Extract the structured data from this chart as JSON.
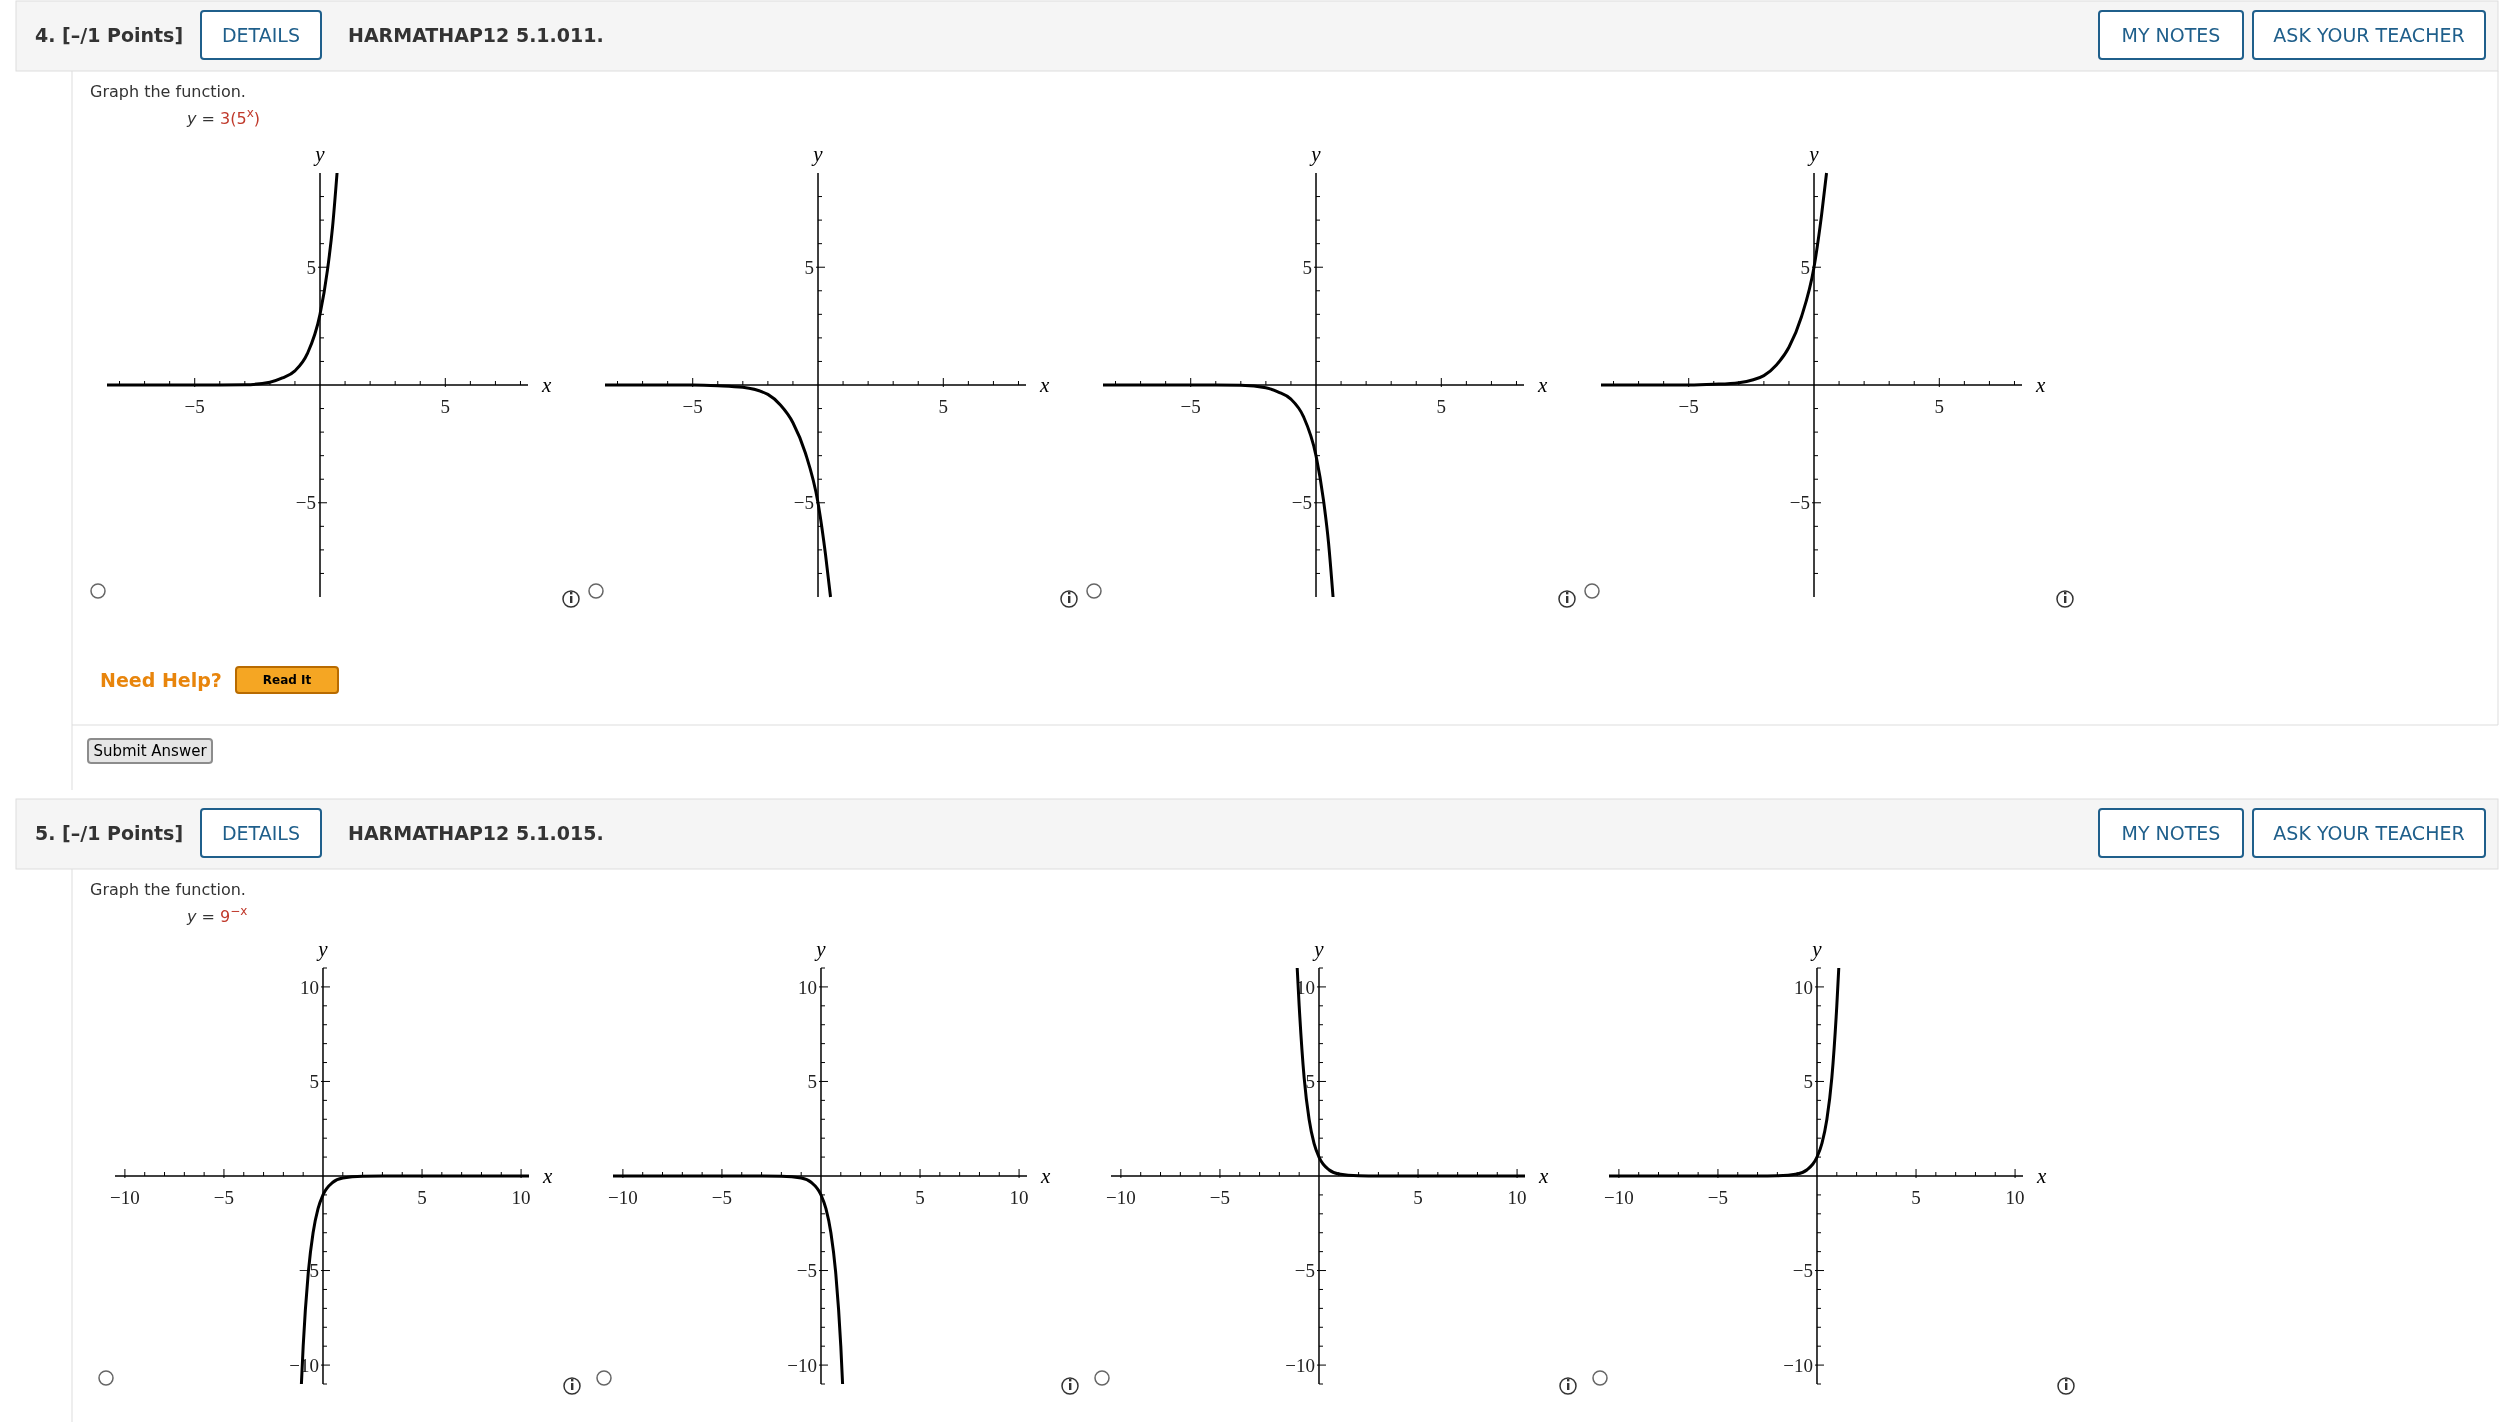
{
  "chart_data": [
    {
      "type": "other",
      "annotations": [
        "4. [–/1 Points]",
        "DETAILS",
        "HARMATHAP12 5.1.011.",
        "MY NOTES",
        "ASK YOUR TEACHER",
        "Graph the function.",
        "y = ",
        "3(5$^{x}$)",
        "Need Help?",
        "Read It",
        "Submit Answer"
      ]
    },
    {
      "type": "line",
      "xlabel": "x",
      "ylabel": "y",
      "xlim": [
        -8.5,
        8.3
      ],
      "ylim": [
        -9,
        9
      ],
      "xticks": [
        {
          "value": -8,
          "label": null
        },
        {
          "value": -7,
          "label": null
        },
        {
          "value": -6,
          "label": null
        },
        {
          "value": -5,
          "label": "−5"
        },
        {
          "value": -4,
          "label": null
        },
        {
          "value": -3,
          "label": null
        },
        {
          "value": -2,
          "label": null
        },
        {
          "value": -1,
          "label": null
        },
        {
          "value": 1,
          "label": null
        },
        {
          "value": 2,
          "label": null
        },
        {
          "value": 3,
          "label": null
        },
        {
          "value": 4,
          "label": null
        },
        {
          "value": 5,
          "label": "5"
        },
        {
          "value": 6,
          "label": null
        },
        {
          "value": 7,
          "label": null
        },
        {
          "value": 8,
          "label": null
        }
      ],
      "yticks": [
        {
          "value": -8,
          "label": null
        },
        {
          "value": -7,
          "label": null
        },
        {
          "value": -6,
          "label": null
        },
        {
          "value": -5,
          "label": "−5"
        },
        {
          "value": -4,
          "label": null
        },
        {
          "value": -3,
          "label": null
        },
        {
          "value": -2,
          "label": null
        },
        {
          "value": -1,
          "label": null
        },
        {
          "value": 1,
          "label": null
        },
        {
          "value": 2,
          "label": null
        },
        {
          "value": 3,
          "label": null
        },
        {
          "value": 4,
          "label": null
        },
        {
          "value": 5,
          "label": "5"
        },
        {
          "value": 6,
          "label": null
        },
        {
          "value": 7,
          "label": null
        },
        {
          "value": 8,
          "label": null
        }
      ],
      "color": "#000000",
      "x": [
        -8.5,
        -4,
        -3,
        -2,
        -1.5,
        -1,
        -0.5,
        0,
        0.3,
        0.5,
        0.68
      ],
      "values": [
        0,
        0,
        0.01,
        0.12,
        0.3,
        0.6,
        1.34,
        3,
        4.9,
        6.7,
        9
      ]
    },
    {
      "type": "line",
      "xlabel": "x",
      "ylabel": "y",
      "xlim": [
        -8.5,
        8.3
      ],
      "ylim": [
        -9,
        9
      ],
      "xticks": [
        {
          "value": -8,
          "label": null
        },
        {
          "value": -7,
          "label": null
        },
        {
          "value": -6,
          "label": null
        },
        {
          "value": -5,
          "label": "−5"
        },
        {
          "value": -4,
          "label": null
        },
        {
          "value": -3,
          "label": null
        },
        {
          "value": -2,
          "label": null
        },
        {
          "value": -1,
          "label": null
        },
        {
          "value": 1,
          "label": null
        },
        {
          "value": 2,
          "label": null
        },
        {
          "value": 3,
          "label": null
        },
        {
          "value": 4,
          "label": null
        },
        {
          "value": 5,
          "label": "5"
        },
        {
          "value": 6,
          "label": null
        },
        {
          "value": 7,
          "label": null
        },
        {
          "value": 8,
          "label": null
        }
      ],
      "yticks": [
        {
          "value": -8,
          "label": null
        },
        {
          "value": -7,
          "label": null
        },
        {
          "value": -6,
          "label": null
        },
        {
          "value": -5,
          "label": "−5"
        },
        {
          "value": -4,
          "label": null
        },
        {
          "value": -3,
          "label": null
        },
        {
          "value": -2,
          "label": null
        },
        {
          "value": -1,
          "label": null
        },
        {
          "value": 1,
          "label": null
        },
        {
          "value": 2,
          "label": null
        },
        {
          "value": 3,
          "label": null
        },
        {
          "value": 4,
          "label": null
        },
        {
          "value": 5,
          "label": "5"
        },
        {
          "value": 6,
          "label": null
        },
        {
          "value": 7,
          "label": null
        },
        {
          "value": 8,
          "label": null
        }
      ],
      "color": "#000000",
      "x": [
        -8.5,
        -5,
        -4,
        -3,
        -2,
        -1.5,
        -1,
        -0.5,
        0,
        0.3,
        0.5
      ],
      "values": [
        0,
        0,
        -0.03,
        -0.1,
        -0.4,
        -0.85,
        -1.6,
        -2.9,
        -5,
        -7.2,
        -9
      ]
    },
    {
      "type": "line",
      "xlabel": "x",
      "ylabel": "y",
      "xlim": [
        -8.5,
        8.3
      ],
      "ylim": [
        -9,
        9
      ],
      "xticks": [
        {
          "value": -8,
          "label": null
        },
        {
          "value": -7,
          "label": null
        },
        {
          "value": -6,
          "label": null
        },
        {
          "value": -5,
          "label": "−5"
        },
        {
          "value": -4,
          "label": null
        },
        {
          "value": -3,
          "label": null
        },
        {
          "value": -2,
          "label": null
        },
        {
          "value": -1,
          "label": null
        },
        {
          "value": 1,
          "label": null
        },
        {
          "value": 2,
          "label": null
        },
        {
          "value": 3,
          "label": null
        },
        {
          "value": 4,
          "label": null
        },
        {
          "value": 5,
          "label": "5"
        },
        {
          "value": 6,
          "label": null
        },
        {
          "value": 7,
          "label": null
        },
        {
          "value": 8,
          "label": null
        }
      ],
      "yticks": [
        {
          "value": -8,
          "label": null
        },
        {
          "value": -7,
          "label": null
        },
        {
          "value": -6,
          "label": null
        },
        {
          "value": -5,
          "label": "−5"
        },
        {
          "value": -4,
          "label": null
        },
        {
          "value": -3,
          "label": null
        },
        {
          "value": -2,
          "label": null
        },
        {
          "value": -1,
          "label": null
        },
        {
          "value": 1,
          "label": null
        },
        {
          "value": 2,
          "label": null
        },
        {
          "value": 3,
          "label": null
        },
        {
          "value": 4,
          "label": null
        },
        {
          "value": 5,
          "label": "5"
        },
        {
          "value": 6,
          "label": null
        },
        {
          "value": 7,
          "label": null
        },
        {
          "value": 8,
          "label": null
        }
      ],
      "color": "#000000",
      "x": [
        -8.5,
        -4,
        -3,
        -2,
        -1.5,
        -1,
        -0.5,
        0,
        0.3,
        0.5,
        0.68
      ],
      "values": [
        0,
        0,
        -0.01,
        -0.12,
        -0.3,
        -0.6,
        -1.34,
        -3,
        -4.9,
        -6.7,
        -9
      ]
    },
    {
      "type": "line",
      "xlabel": "x",
      "ylabel": "y",
      "xlim": [
        -8.5,
        8.3
      ],
      "ylim": [
        -9,
        9
      ],
      "xticks": [
        {
          "value": -8,
          "label": null
        },
        {
          "value": -7,
          "label": null
        },
        {
          "value": -6,
          "label": null
        },
        {
          "value": -5,
          "label": "−5"
        },
        {
          "value": -4,
          "label": null
        },
        {
          "value": -3,
          "label": null
        },
        {
          "value": -2,
          "label": null
        },
        {
          "value": -1,
          "label": null
        },
        {
          "value": 1,
          "label": null
        },
        {
          "value": 2,
          "label": null
        },
        {
          "value": 3,
          "label": null
        },
        {
          "value": 4,
          "label": null
        },
        {
          "value": 5,
          "label": "5"
        },
        {
          "value": 6,
          "label": null
        },
        {
          "value": 7,
          "label": null
        },
        {
          "value": 8,
          "label": null
        }
      ],
      "yticks": [
        {
          "value": -8,
          "label": null
        },
        {
          "value": -7,
          "label": null
        },
        {
          "value": -6,
          "label": null
        },
        {
          "value": -5,
          "label": "−5"
        },
        {
          "value": -4,
          "label": null
        },
        {
          "value": -3,
          "label": null
        },
        {
          "value": -2,
          "label": null
        },
        {
          "value": -1,
          "label": null
        },
        {
          "value": 1,
          "label": null
        },
        {
          "value": 2,
          "label": null
        },
        {
          "value": 3,
          "label": null
        },
        {
          "value": 4,
          "label": null
        },
        {
          "value": 5,
          "label": "5"
        },
        {
          "value": 6,
          "label": null
        },
        {
          "value": 7,
          "label": null
        },
        {
          "value": 8,
          "label": null
        }
      ],
      "color": "#000000",
      "x": [
        -8.5,
        -5,
        -4,
        -3,
        -2,
        -1.5,
        -1,
        -0.5,
        0,
        0.3,
        0.5
      ],
      "values": [
        0,
        0,
        0.03,
        0.1,
        0.4,
        0.85,
        1.6,
        2.9,
        5,
        7.2,
        9
      ]
    },
    {
      "type": "other",
      "annotations": [
        "5. [–/1 Points]",
        "DETAILS",
        "HARMATHAP12 5.1.015.",
        "MY NOTES",
        "ASK YOUR TEACHER",
        "Graph the function.",
        "y = ",
        "9$^{−x}$"
      ]
    },
    {
      "type": "line",
      "xlabel": "x",
      "ylabel": "y",
      "xlim": [
        -10.5,
        10.4
      ],
      "ylim": [
        -11,
        11
      ],
      "xticks": [
        {
          "value": -10,
          "label": "−10"
        },
        {
          "value": -9,
          "label": null
        },
        {
          "value": -8,
          "label": null
        },
        {
          "value": -7,
          "label": null
        },
        {
          "value": -6,
          "label": null
        },
        {
          "value": -5,
          "label": "−5"
        },
        {
          "value": -4,
          "label": null
        },
        {
          "value": -3,
          "label": null
        },
        {
          "value": -2,
          "label": null
        },
        {
          "value": -1,
          "label": null
        },
        {
          "value": 1,
          "label": null
        },
        {
          "value": 2,
          "label": null
        },
        {
          "value": 3,
          "label": null
        },
        {
          "value": 4,
          "label": null
        },
        {
          "value": 5,
          "label": "5"
        },
        {
          "value": 6,
          "label": null
        },
        {
          "value": 7,
          "label": null
        },
        {
          "value": 8,
          "label": null
        },
        {
          "value": 9,
          "label": null
        },
        {
          "value": 10,
          "label": "10"
        }
      ],
      "yticks": [
        {
          "value": -11,
          "label": null
        },
        {
          "value": -10,
          "label": "−10"
        },
        {
          "value": -9,
          "label": null
        },
        {
          "value": -8,
          "label": null
        },
        {
          "value": -7,
          "label": null
        },
        {
          "value": -6,
          "label": null
        },
        {
          "value": -5,
          "label": "−5"
        },
        {
          "value": -4,
          "label": null
        },
        {
          "value": -3,
          "label": null
        },
        {
          "value": -2,
          "label": null
        },
        {
          "value": -1,
          "label": null
        },
        {
          "value": 1,
          "label": null
        },
        {
          "value": 2,
          "label": null
        },
        {
          "value": 3,
          "label": null
        },
        {
          "value": 4,
          "label": null
        },
        {
          "value": 5,
          "label": "5"
        },
        {
          "value": 6,
          "label": null
        },
        {
          "value": 7,
          "label": null
        },
        {
          "value": 8,
          "label": null
        },
        {
          "value": 9,
          "label": null
        },
        {
          "value": 10,
          "label": "10"
        },
        {
          "value": 11,
          "label": null
        }
      ],
      "color": "#000000",
      "x": [
        -1.09,
        -1,
        -0.75,
        -0.5,
        -0.25,
        0,
        0.5,
        1,
        2,
        3,
        10.4
      ],
      "values": [
        -11,
        -9,
        -5.2,
        -3,
        -1.73,
        -1,
        -0.33,
        -0.11,
        -0.01,
        0,
        0
      ]
    },
    {
      "type": "line",
      "xlabel": "x",
      "ylabel": "y",
      "xlim": [
        -10.5,
        10.4
      ],
      "ylim": [
        -11,
        11
      ],
      "xticks": [
        {
          "value": -10,
          "label": "−10"
        },
        {
          "value": -9,
          "label": null
        },
        {
          "value": -8,
          "label": null
        },
        {
          "value": -7,
          "label": null
        },
        {
          "value": -6,
          "label": null
        },
        {
          "value": -5,
          "label": "−5"
        },
        {
          "value": -4,
          "label": null
        },
        {
          "value": -3,
          "label": null
        },
        {
          "value": -2,
          "label": null
        },
        {
          "value": -1,
          "label": null
        },
        {
          "value": 1,
          "label": null
        },
        {
          "value": 2,
          "label": null
        },
        {
          "value": 3,
          "label": null
        },
        {
          "value": 4,
          "label": null
        },
        {
          "value": 5,
          "label": "5"
        },
        {
          "value": 6,
          "label": null
        },
        {
          "value": 7,
          "label": null
        },
        {
          "value": 8,
          "label": null
        },
        {
          "value": 9,
          "label": null
        },
        {
          "value": 10,
          "label": "10"
        }
      ],
      "yticks": [
        {
          "value": -11,
          "label": null
        },
        {
          "value": -10,
          "label": "−10"
        },
        {
          "value": -9,
          "label": null
        },
        {
          "value": -8,
          "label": null
        },
        {
          "value": -7,
          "label": null
        },
        {
          "value": -6,
          "label": null
        },
        {
          "value": -5,
          "label": "−5"
        },
        {
          "value": -4,
          "label": null
        },
        {
          "value": -3,
          "label": null
        },
        {
          "value": -2,
          "label": null
        },
        {
          "value": -1,
          "label": null
        },
        {
          "value": 1,
          "label": null
        },
        {
          "value": 2,
          "label": null
        },
        {
          "value": 3,
          "label": null
        },
        {
          "value": 4,
          "label": null
        },
        {
          "value": 5,
          "label": "5"
        },
        {
          "value": 6,
          "label": null
        },
        {
          "value": 7,
          "label": null
        },
        {
          "value": 8,
          "label": null
        },
        {
          "value": 9,
          "label": null
        },
        {
          "value": 10,
          "label": "10"
        },
        {
          "value": 11,
          "label": null
        }
      ],
      "color": "#000000",
      "x": [
        -10.5,
        -3,
        -2,
        -1,
        -0.5,
        0,
        0.25,
        0.5,
        0.75,
        1,
        1.09
      ],
      "values": [
        0,
        0,
        -0.01,
        -0.11,
        -0.33,
        -1,
        -1.73,
        -3,
        -5.2,
        -9,
        -11
      ]
    },
    {
      "type": "line",
      "xlabel": "x",
      "ylabel": "y",
      "xlim": [
        -10.5,
        10.4
      ],
      "ylim": [
        -11,
        11
      ],
      "xticks": [
        {
          "value": -10,
          "label": "−10"
        },
        {
          "value": -9,
          "label": null
        },
        {
          "value": -8,
          "label": null
        },
        {
          "value": -7,
          "label": null
        },
        {
          "value": -6,
          "label": null
        },
        {
          "value": -5,
          "label": "−5"
        },
        {
          "value": -4,
          "label": null
        },
        {
          "value": -3,
          "label": null
        },
        {
          "value": -2,
          "label": null
        },
        {
          "value": -1,
          "label": null
        },
        {
          "value": 1,
          "label": null
        },
        {
          "value": 2,
          "label": null
        },
        {
          "value": 3,
          "label": null
        },
        {
          "value": 4,
          "label": null
        },
        {
          "value": 5,
          "label": "5"
        },
        {
          "value": 6,
          "label": null
        },
        {
          "value": 7,
          "label": null
        },
        {
          "value": 8,
          "label": null
        },
        {
          "value": 9,
          "label": null
        },
        {
          "value": 10,
          "label": "10"
        }
      ],
      "yticks": [
        {
          "value": -11,
          "label": null
        },
        {
          "value": -10,
          "label": "−10"
        },
        {
          "value": -9,
          "label": null
        },
        {
          "value": -8,
          "label": null
        },
        {
          "value": -7,
          "label": null
        },
        {
          "value": -6,
          "label": null
        },
        {
          "value": -5,
          "label": "−5"
        },
        {
          "value": -4,
          "label": null
        },
        {
          "value": -3,
          "label": null
        },
        {
          "value": -2,
          "label": null
        },
        {
          "value": -1,
          "label": null
        },
        {
          "value": 1,
          "label": null
        },
        {
          "value": 2,
          "label": null
        },
        {
          "value": 3,
          "label": null
        },
        {
          "value": 4,
          "label": null
        },
        {
          "value": 5,
          "label": "5"
        },
        {
          "value": 6,
          "label": null
        },
        {
          "value": 7,
          "label": null
        },
        {
          "value": 8,
          "label": null
        },
        {
          "value": 9,
          "label": null
        },
        {
          "value": 10,
          "label": "10"
        },
        {
          "value": 11,
          "label": null
        }
      ],
      "color": "#000000",
      "x": [
        -1.1,
        -1,
        -0.75,
        -0.5,
        -0.25,
        0,
        0.5,
        1,
        2,
        3,
        10.4
      ],
      "values": [
        11,
        9,
        5.2,
        3,
        1.73,
        1,
        0.33,
        0.11,
        0.01,
        0,
        0
      ]
    },
    {
      "type": "line",
      "xlabel": "x",
      "ylabel": "y",
      "xlim": [
        -10.5,
        10.4
      ],
      "ylim": [
        -11,
        11
      ],
      "xticks": [
        {
          "value": -10,
          "label": "−10"
        },
        {
          "value": -9,
          "label": null
        },
        {
          "value": -8,
          "label": null
        },
        {
          "value": -7,
          "label": null
        },
        {
          "value": -6,
          "label": null
        },
        {
          "value": -5,
          "label": "−5"
        },
        {
          "value": -4,
          "label": null
        },
        {
          "value": -3,
          "label": null
        },
        {
          "value": -2,
          "label": null
        },
        {
          "value": -1,
          "label": null
        },
        {
          "value": 1,
          "label": null
        },
        {
          "value": 2,
          "label": null
        },
        {
          "value": 3,
          "label": null
        },
        {
          "value": 4,
          "label": null
        },
        {
          "value": 5,
          "label": "5"
        },
        {
          "value": 6,
          "label": null
        },
        {
          "value": 7,
          "label": null
        },
        {
          "value": 8,
          "label": null
        },
        {
          "value": 9,
          "label": null
        },
        {
          "value": 10,
          "label": "10"
        }
      ],
      "yticks": [
        {
          "value": -11,
          "label": null
        },
        {
          "value": -10,
          "label": "−10"
        },
        {
          "value": -9,
          "label": null
        },
        {
          "value": -8,
          "label": null
        },
        {
          "value": -7,
          "label": null
        },
        {
          "value": -6,
          "label": null
        },
        {
          "value": -5,
          "label": "−5"
        },
        {
          "value": -4,
          "label": null
        },
        {
          "value": -3,
          "label": null
        },
        {
          "value": -2,
          "label": null
        },
        {
          "value": -1,
          "label": null
        },
        {
          "value": 1,
          "label": null
        },
        {
          "value": 2,
          "label": null
        },
        {
          "value": 3,
          "label": null
        },
        {
          "value": 4,
          "label": null
        },
        {
          "value": 5,
          "label": "5"
        },
        {
          "value": 6,
          "label": null
        },
        {
          "value": 7,
          "label": null
        },
        {
          "value": 8,
          "label": null
        },
        {
          "value": 9,
          "label": null
        },
        {
          "value": 10,
          "label": "10"
        },
        {
          "value": 11,
          "label": null
        }
      ],
      "color": "#000000",
      "x": [
        -10.5,
        -3,
        -2,
        -1,
        -0.5,
        0,
        0.25,
        0.5,
        0.75,
        1,
        1.1
      ],
      "values": [
        0,
        0,
        0.01,
        0.11,
        0.33,
        1,
        1.73,
        3,
        5.2,
        9,
        11
      ]
    }
  ]
}
